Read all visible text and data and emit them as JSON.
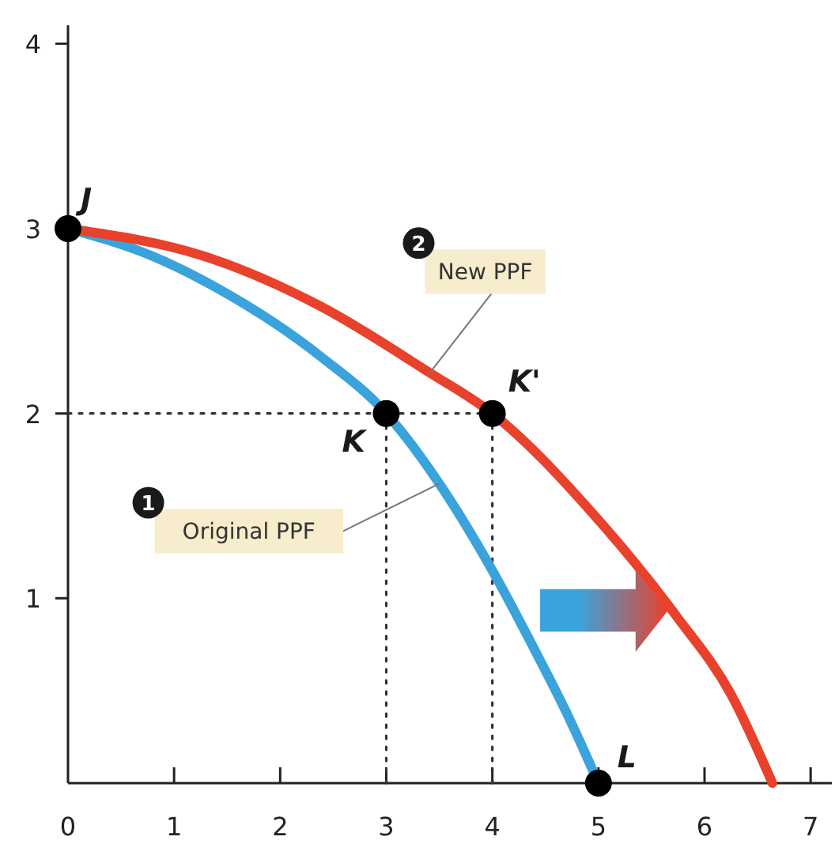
{
  "chart_data": {
    "type": "line",
    "xlim": [
      0,
      7.2
    ],
    "ylim": [
      0,
      4.1
    ],
    "xticks": [
      0,
      1,
      2,
      3,
      4,
      5,
      6,
      7
    ],
    "yticks": [
      1,
      2,
      3,
      4
    ],
    "grid": false,
    "series": [
      {
        "color": "#3ba3dc",
        "x": [
          0,
          0.8,
          1.4,
          2.4,
          3,
          3.5,
          4,
          4.4,
          4.7,
          5
        ],
        "values": [
          3,
          2.85,
          2.68,
          2.3,
          2,
          1.62,
          1.15,
          0.72,
          0.38,
          0
        ]
      },
      {
        "color": "#e8412c",
        "x": [
          0,
          1.34,
          2.38,
          3.41,
          4,
          4.96,
          5.74,
          6.25,
          6.64
        ],
        "values": [
          3,
          2.84,
          2.58,
          2.22,
          2,
          1.45,
          0.9,
          0.48,
          0
        ]
      },
      {
        "color": "#333333",
        "line_style": "dotted",
        "x": [
          0,
          4
        ],
        "values": [
          2,
          2
        ]
      },
      {
        "color": "#333333",
        "line_style": "dotted",
        "x": [
          3,
          3
        ],
        "values": [
          0,
          2
        ]
      },
      {
        "color": "#333333",
        "line_style": "dotted",
        "x": [
          4,
          4
        ],
        "values": [
          0,
          2
        ]
      },
      {
        "type": "scatter",
        "marker": "circle",
        "color": "#000000",
        "x": [
          0,
          3,
          4,
          5
        ],
        "values": [
          3,
          2,
          2,
          0
        ]
      }
    ],
    "annotations": [
      {
        "text": "J",
        "x": 0,
        "y": 3
      },
      {
        "text": "K",
        "x": 3,
        "y": 2
      },
      {
        "text": "K'",
        "x": 4,
        "y": 2
      },
      {
        "text": "L",
        "x": 5,
        "y": 0
      },
      {
        "text": "Original PPF",
        "x": 3.5,
        "y": 1.62
      },
      {
        "text": "New PPF",
        "x": 3.41,
        "y": 2.22
      },
      "1",
      "2"
    ]
  }
}
